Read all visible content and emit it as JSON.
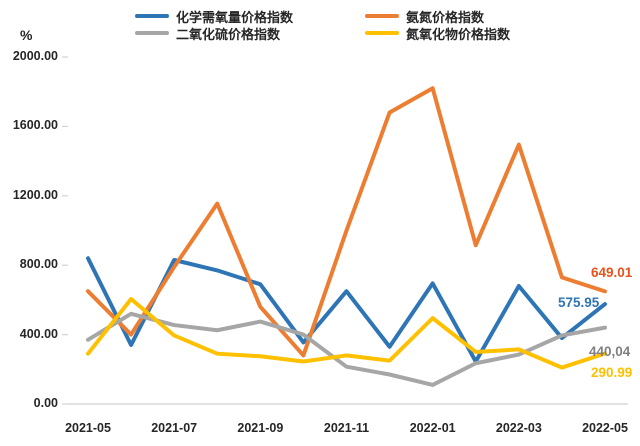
{
  "page": {
    "background": "#FFFFFF"
  },
  "chart_data": {
    "type": "line",
    "title": "",
    "unit_label": "%",
    "categories": [
      "2021-05",
      "2021-06",
      "2021-07",
      "2021-08",
      "2021-09",
      "2021-10",
      "2021-11",
      "2021-12",
      "2022-01",
      "2022-02",
      "2022-03",
      "2022-04",
      "2022-05"
    ],
    "x_axis_labels": [
      "2021-05",
      "2021-07",
      "2021-09",
      "2021-11",
      "2022-01",
      "2022-03",
      "2022-05"
    ],
    "y_axis_labels": [
      "0.00",
      "400.00",
      "800.00",
      "1200.00",
      "1600.00",
      "2000.00"
    ],
    "ylim": [
      0,
      2000
    ],
    "y_tick_step": 400,
    "grid": false,
    "legend_position": "top",
    "axis_color": "#D9D9D9",
    "tick_color": "#C9D5E3",
    "text_color": "#262626",
    "series": [
      {
        "name": "化学需氧量价格指数",
        "color": "#2E75B6",
        "values": [
          840,
          340,
          830,
          770,
          690,
          355,
          650,
          330,
          695,
          245,
          680,
          380,
          575.95
        ],
        "end_label": "575.95",
        "end_label_color": "#2E75B6"
      },
      {
        "name": "氨氮价格指数",
        "color": "#ED7D31",
        "values": [
          650,
          400,
          790,
          1155,
          560,
          280,
          1000,
          1680,
          1820,
          915,
          1495,
          730,
          649.01
        ],
        "end_label": "649.01",
        "end_label_color": "#E8521A"
      },
      {
        "name": "二氧化硫价格指数",
        "color": "#A6A6A6",
        "values": [
          370,
          520,
          455,
          425,
          475,
          400,
          215,
          170,
          110,
          235,
          285,
          395,
          440.04
        ],
        "end_label": "440,04",
        "end_label_color": "#7F7F7F"
      },
      {
        "name": "氮氧化物价格指数",
        "color": "#FFC000",
        "values": [
          290,
          605,
          395,
          290,
          275,
          245,
          280,
          250,
          495,
          300,
          315,
          210,
          290.99
        ],
        "end_label": "290.99",
        "end_label_color": "#FFC000"
      }
    ]
  }
}
